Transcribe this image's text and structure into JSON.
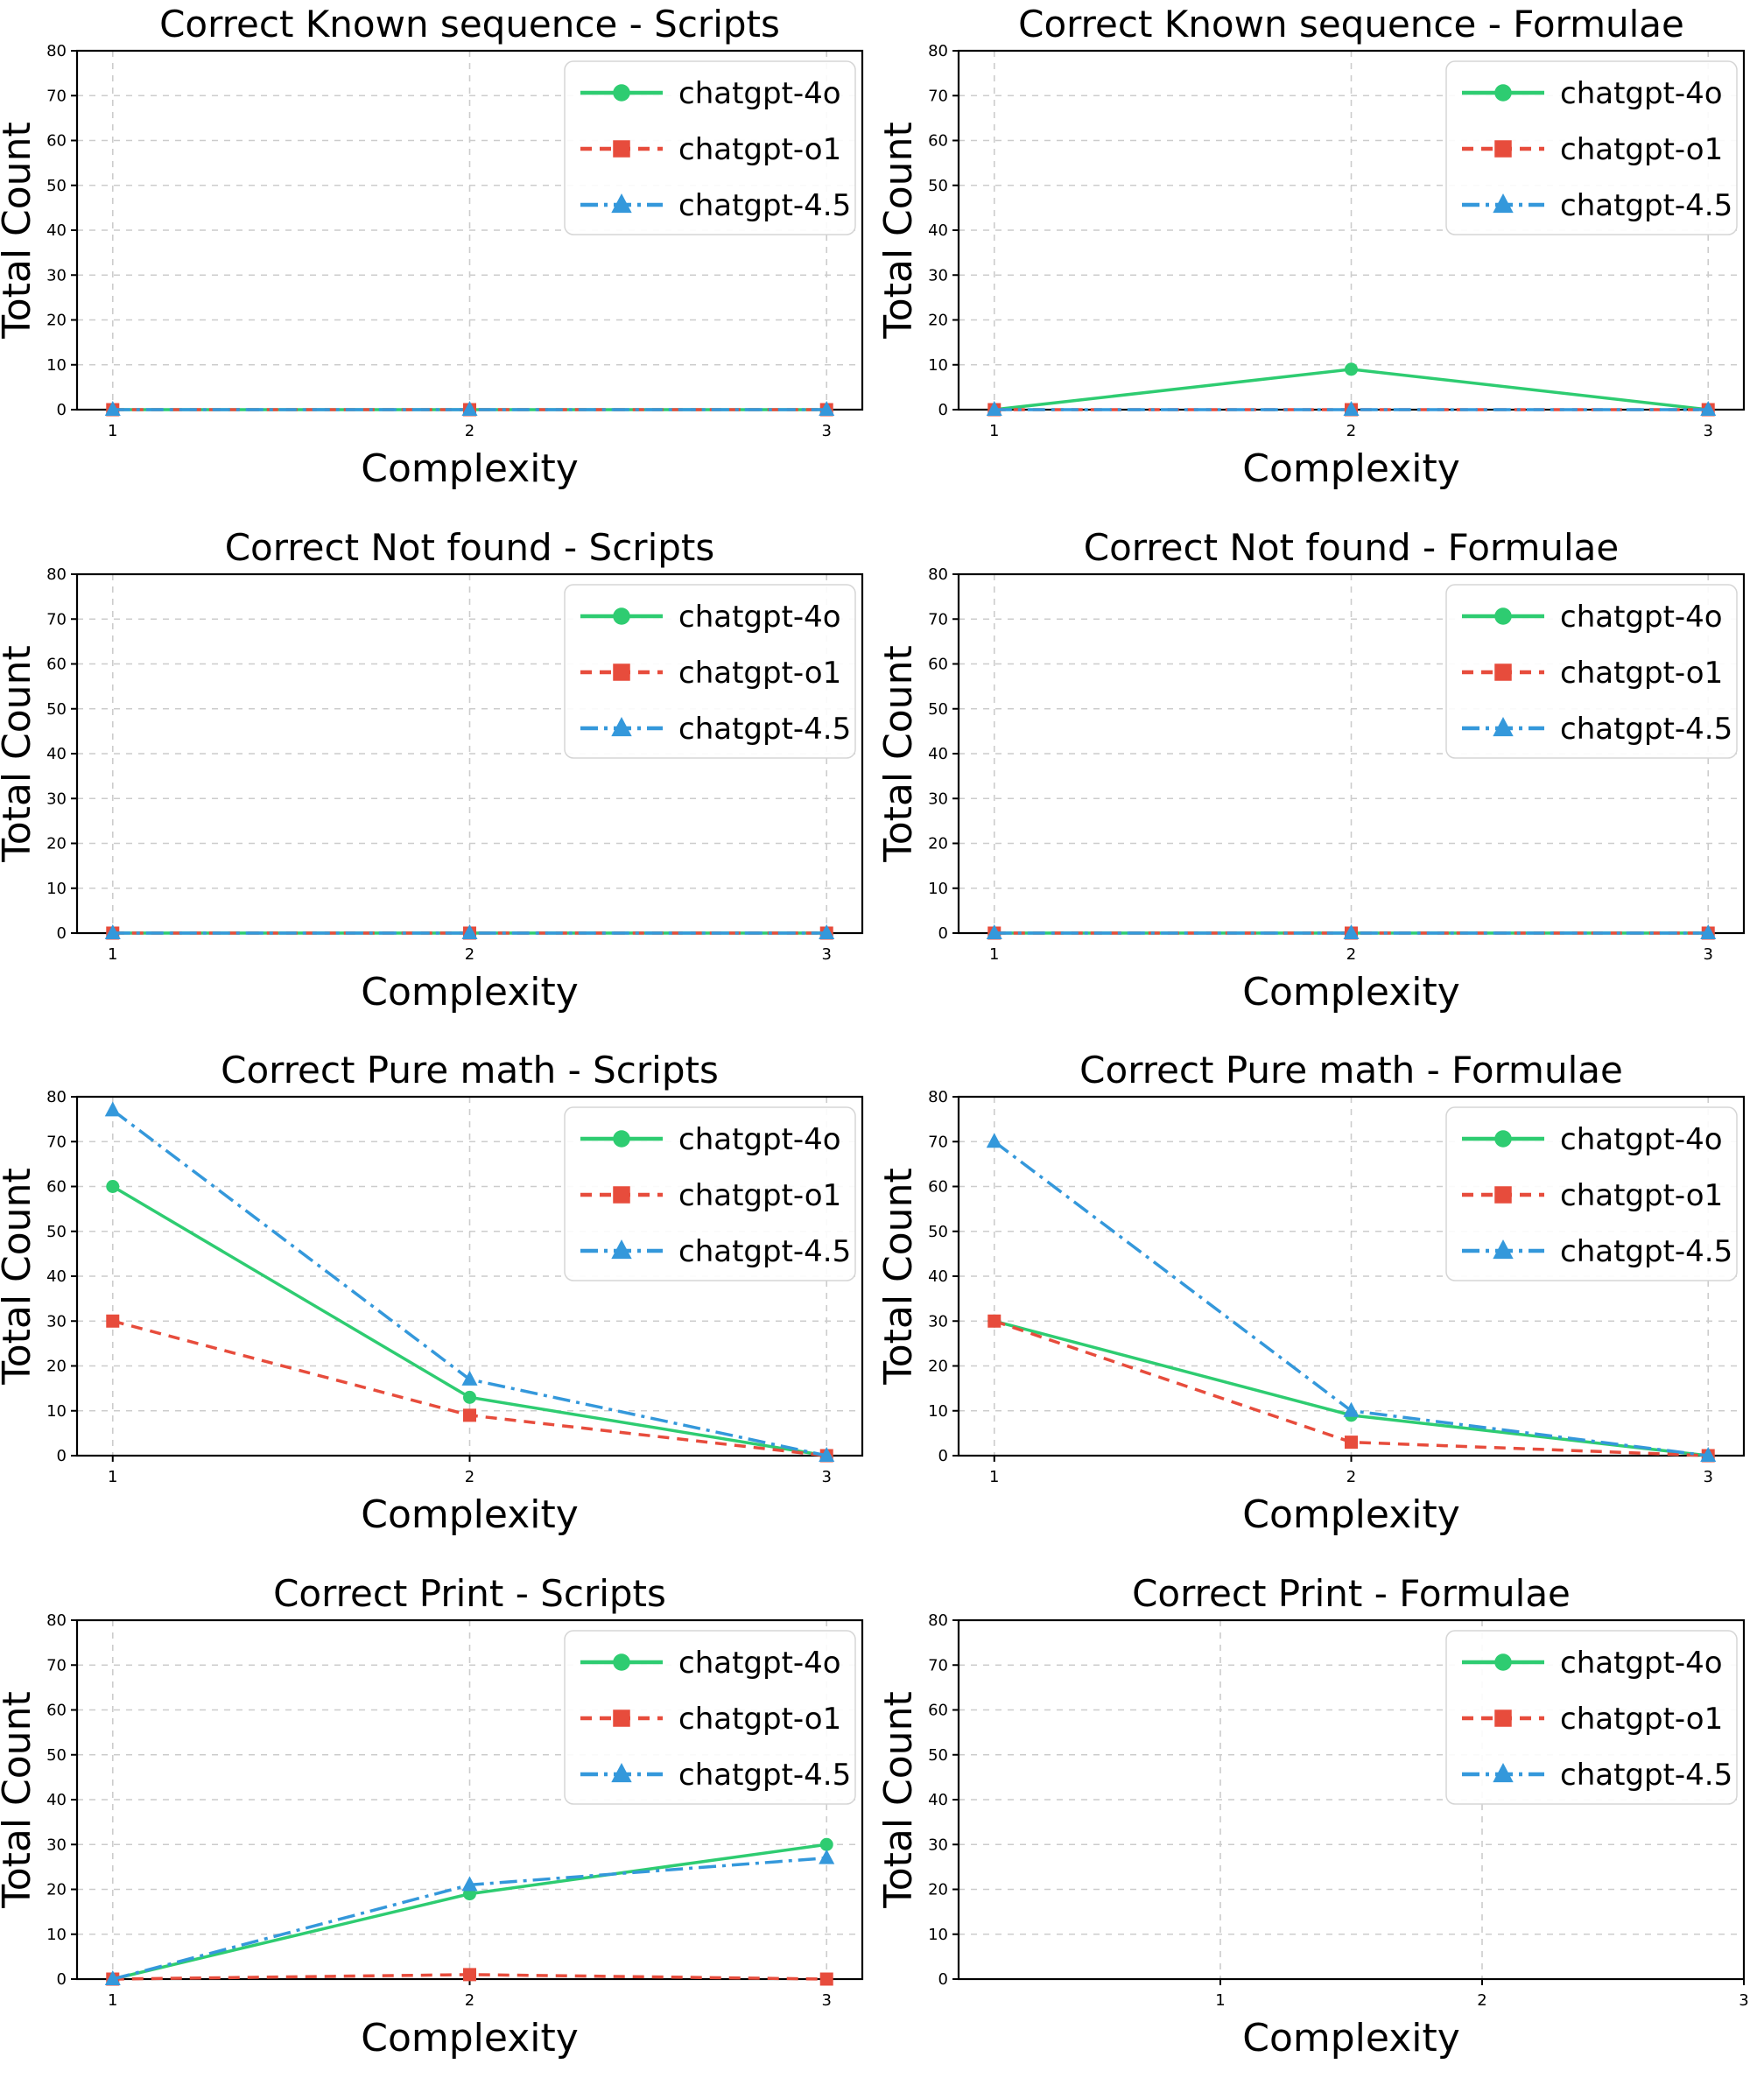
{
  "page": {
    "background": "#ffffff",
    "layout": "4x2 grid of line charts"
  },
  "styles": {
    "grid_color": "#cccccc",
    "spine_color": "#000000",
    "text_color": "#000000",
    "legend_border_color": "#d5d5d5",
    "legend_background": "#ffffff",
    "series": [
      {
        "name": "chatgpt-4o",
        "color": "#2ecc71",
        "dash": "solid",
        "marker": "circle"
      },
      {
        "name": "chatgpt-o1",
        "color": "#e74c3c",
        "dash": "dashed",
        "marker": "square"
      },
      {
        "name": "chatgpt-4.5",
        "color": "#3498db",
        "dash": "dashdot",
        "marker": "triangle"
      }
    ]
  },
  "chart_data": [
    {
      "type": "line",
      "title": "Correct Known sequence - Scripts",
      "xlabel": "Complexity",
      "ylabel": "Total Count",
      "x": [
        1,
        2,
        3
      ],
      "xticks": [
        1,
        2,
        3
      ],
      "xlim": [
        0.9,
        3.1
      ],
      "ylim": [
        0,
        80
      ],
      "yticks": [
        0,
        10,
        20,
        30,
        40,
        50,
        60,
        70,
        80
      ],
      "grid": true,
      "legend_position": "upper right",
      "legend_entries": [
        "chatgpt-4o",
        "chatgpt-o1",
        "chatgpt-4.5"
      ],
      "series": [
        {
          "name": "chatgpt-4o",
          "values": [
            0,
            0,
            0
          ]
        },
        {
          "name": "chatgpt-o1",
          "values": [
            0,
            0,
            0
          ]
        },
        {
          "name": "chatgpt-4.5",
          "values": [
            0,
            0,
            0
          ]
        }
      ]
    },
    {
      "type": "line",
      "title": "Correct Known sequence - Formulae",
      "xlabel": "Complexity",
      "ylabel": "Total Count",
      "x": [
        1,
        2,
        3
      ],
      "xticks": [
        1,
        2,
        3
      ],
      "xlim": [
        0.9,
        3.1
      ],
      "ylim": [
        0,
        80
      ],
      "yticks": [
        0,
        10,
        20,
        30,
        40,
        50,
        60,
        70,
        80
      ],
      "grid": true,
      "legend_position": "upper right",
      "legend_entries": [
        "chatgpt-4o",
        "chatgpt-o1",
        "chatgpt-4.5"
      ],
      "series": [
        {
          "name": "chatgpt-4o",
          "values": [
            0,
            9,
            0
          ]
        },
        {
          "name": "chatgpt-o1",
          "values": [
            0,
            0,
            0
          ]
        },
        {
          "name": "chatgpt-4.5",
          "values": [
            0,
            0,
            0
          ]
        }
      ]
    },
    {
      "type": "line",
      "title": "Correct Not found - Scripts",
      "xlabel": "Complexity",
      "ylabel": "Total Count",
      "x": [
        1,
        2,
        3
      ],
      "xticks": [
        1,
        2,
        3
      ],
      "xlim": [
        0.9,
        3.1
      ],
      "ylim": [
        0,
        80
      ],
      "yticks": [
        0,
        10,
        20,
        30,
        40,
        50,
        60,
        70,
        80
      ],
      "grid": true,
      "legend_position": "upper right",
      "legend_entries": [
        "chatgpt-4o",
        "chatgpt-o1",
        "chatgpt-4.5"
      ],
      "series": [
        {
          "name": "chatgpt-4o",
          "values": [
            0,
            0,
            0
          ]
        },
        {
          "name": "chatgpt-o1",
          "values": [
            0,
            0,
            0
          ]
        },
        {
          "name": "chatgpt-4.5",
          "values": [
            0,
            0,
            0
          ]
        }
      ]
    },
    {
      "type": "line",
      "title": "Correct Not found - Formulae",
      "xlabel": "Complexity",
      "ylabel": "Total Count",
      "x": [
        1,
        2,
        3
      ],
      "xticks": [
        1,
        2,
        3
      ],
      "xlim": [
        0.9,
        3.1
      ],
      "ylim": [
        0,
        80
      ],
      "yticks": [
        0,
        10,
        20,
        30,
        40,
        50,
        60,
        70,
        80
      ],
      "grid": true,
      "legend_position": "upper right",
      "legend_entries": [
        "chatgpt-4o",
        "chatgpt-o1",
        "chatgpt-4.5"
      ],
      "series": [
        {
          "name": "chatgpt-4o",
          "values": [
            0,
            0,
            0
          ]
        },
        {
          "name": "chatgpt-o1",
          "values": [
            0,
            0,
            0
          ]
        },
        {
          "name": "chatgpt-4.5",
          "values": [
            0,
            0,
            0
          ]
        }
      ]
    },
    {
      "type": "line",
      "title": "Correct Pure math - Scripts",
      "xlabel": "Complexity",
      "ylabel": "Total Count",
      "x": [
        1,
        2,
        3
      ],
      "xticks": [
        1,
        2,
        3
      ],
      "xlim": [
        0.9,
        3.1
      ],
      "ylim": [
        0,
        80
      ],
      "yticks": [
        0,
        10,
        20,
        30,
        40,
        50,
        60,
        70,
        80
      ],
      "grid": true,
      "legend_position": "upper right",
      "legend_entries": [
        "chatgpt-4o",
        "chatgpt-o1",
        "chatgpt-4.5"
      ],
      "series": [
        {
          "name": "chatgpt-4o",
          "values": [
            60,
            13,
            0
          ]
        },
        {
          "name": "chatgpt-o1",
          "values": [
            30,
            9,
            0
          ]
        },
        {
          "name": "chatgpt-4.5",
          "values": [
            77,
            17,
            0
          ]
        }
      ]
    },
    {
      "type": "line",
      "title": "Correct Pure math - Formulae",
      "xlabel": "Complexity",
      "ylabel": "Total Count",
      "x": [
        1,
        2,
        3
      ],
      "xticks": [
        1,
        2,
        3
      ],
      "xlim": [
        0.9,
        3.1
      ],
      "ylim": [
        0,
        80
      ],
      "yticks": [
        0,
        10,
        20,
        30,
        40,
        50,
        60,
        70,
        80
      ],
      "grid": true,
      "legend_position": "upper right",
      "legend_entries": [
        "chatgpt-4o",
        "chatgpt-o1",
        "chatgpt-4.5"
      ],
      "series": [
        {
          "name": "chatgpt-4o",
          "values": [
            30,
            9,
            0
          ]
        },
        {
          "name": "chatgpt-o1",
          "values": [
            30,
            3,
            0
          ]
        },
        {
          "name": "chatgpt-4.5",
          "values": [
            70,
            10,
            0
          ]
        }
      ]
    },
    {
      "type": "line",
      "title": "Correct Print - Scripts",
      "xlabel": "Complexity",
      "ylabel": "Total Count",
      "x": [
        1,
        2,
        3
      ],
      "xticks": [
        1,
        2,
        3
      ],
      "xlim": [
        0.9,
        3.1
      ],
      "ylim": [
        0,
        80
      ],
      "yticks": [
        0,
        10,
        20,
        30,
        40,
        50,
        60,
        70,
        80
      ],
      "grid": true,
      "legend_position": "upper right",
      "legend_entries": [
        "chatgpt-4o",
        "chatgpt-o1",
        "chatgpt-4.5"
      ],
      "series": [
        {
          "name": "chatgpt-4o",
          "values": [
            0,
            19,
            30
          ]
        },
        {
          "name": "chatgpt-o1",
          "values": [
            0,
            1,
            0
          ]
        },
        {
          "name": "chatgpt-4.5",
          "values": [
            0,
            21,
            27
          ]
        }
      ]
    },
    {
      "type": "line",
      "title": "Correct Print - Formulae",
      "xlabel": "Complexity",
      "ylabel": "Total Count",
      "x": [],
      "xticks": [
        1,
        2,
        3
      ],
      "xlim": [
        0,
        3
      ],
      "ylim": [
        0,
        80
      ],
      "yticks": [
        0,
        10,
        20,
        30,
        40,
        50,
        60,
        70,
        80
      ],
      "grid": true,
      "legend_position": "upper right",
      "legend_entries": [
        "chatgpt-4o",
        "chatgpt-o1",
        "chatgpt-4.5"
      ],
      "series": [
        {
          "name": "chatgpt-4o",
          "values": []
        },
        {
          "name": "chatgpt-o1",
          "values": []
        },
        {
          "name": "chatgpt-4.5",
          "values": []
        }
      ]
    }
  ]
}
